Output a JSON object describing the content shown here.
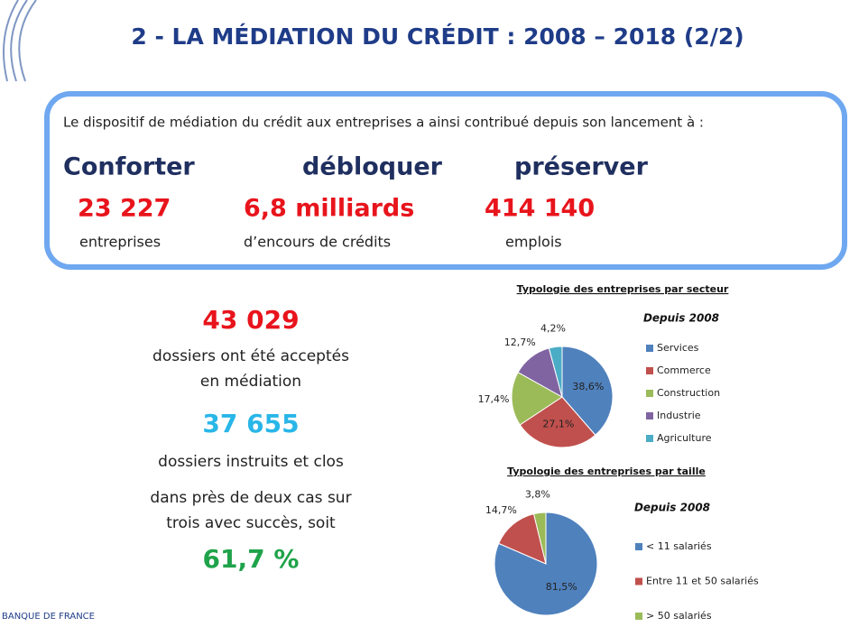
{
  "title": "2 - LA MÉDIATION DU CRÉDIT : 2008 – 2018 (2/2)",
  "summary": {
    "intro": "Le dispositif de médiation du crédit aux entreprises a ainsi contribué depuis son lancement à :",
    "items": [
      {
        "verb": "Conforter",
        "figure": "23 227",
        "caption": "entreprises"
      },
      {
        "verb": "débloquer",
        "figure": "6,8 milliards",
        "caption": "d’encours de crédits"
      },
      {
        "verb": "préserver",
        "figure": "414 140",
        "caption": "emplois"
      }
    ]
  },
  "stats": {
    "accepted": "43 029",
    "accepted_text": [
      "dossiers ont été acceptés",
      "en médiation"
    ],
    "closed": "37 655",
    "closed_text": "dossiers instruits et clos",
    "success_text": [
      "dans près de deux cas sur",
      "trois avec succès, soit"
    ],
    "success": "61,7 %"
  },
  "logo": "BANQUE DE FRANCE",
  "chart_data": [
    {
      "type": "pie",
      "title": "Typologie des entreprises par secteur",
      "subtitle": "Depuis 2008",
      "categories": [
        "Services",
        "Commerce",
        "Construction",
        "Industrie",
        "Agriculture"
      ],
      "values": [
        38.6,
        27.1,
        17.4,
        12.7,
        4.2
      ],
      "value_labels": [
        "38,6%",
        "27,1%",
        "17,4%",
        "12,7%",
        "4,2%"
      ],
      "colors": [
        "#4f81bd",
        "#c0504d",
        "#9bbb59",
        "#8064a2",
        "#4bacc6"
      ]
    },
    {
      "type": "pie",
      "title": "Typologie  des  entreprises  par taille",
      "subtitle": "Depuis 2008",
      "categories": [
        "< 11 salariés",
        "Entre 11 et 50 salariés",
        "> 50 salariés"
      ],
      "values": [
        81.5,
        14.7,
        3.8
      ],
      "value_labels": [
        "81,5%",
        "14,7%",
        "3,8%"
      ],
      "colors": [
        "#4f81bd",
        "#c0504d",
        "#9bbb59"
      ]
    }
  ]
}
